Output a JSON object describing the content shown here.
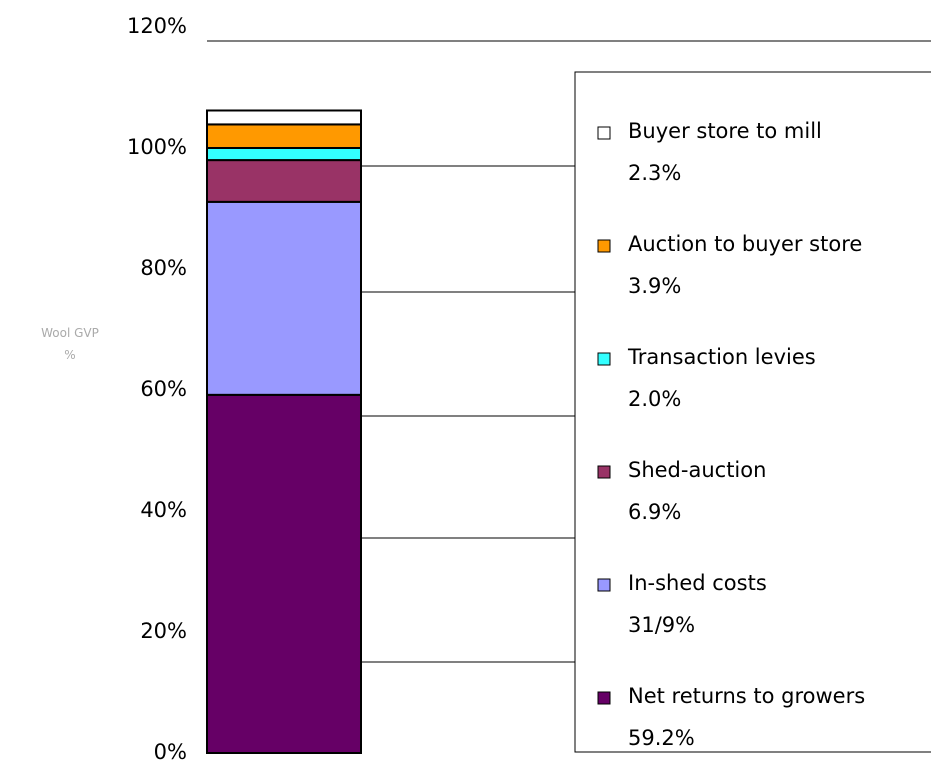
{
  "chart_data": {
    "type": "stacked_bar",
    "y_label": "Wool GVP %",
    "categories": [
      null
    ],
    "series": [
      {
        "name": "Net returns to growers",
        "color": "#660066",
        "values": [
          59.2
        ],
        "value_labels": [
          "59.2%"
        ]
      },
      {
        "name": "In-shed costs",
        "color": "#9999ff",
        "values": [
          31.9
        ],
        "value_labels": [
          "31/9%"
        ]
      },
      {
        "name": "Shed-auction",
        "color": "#993366",
        "values": [
          6.9
        ],
        "value_labels": [
          "6.9%"
        ]
      },
      {
        "name": "Transaction levies",
        "color": "#33ffff",
        "values": [
          2.0
        ],
        "value_labels": [
          "2.0%"
        ]
      },
      {
        "name": "Auction to buyer store",
        "color": "#ff9900",
        "values": [
          3.9
        ],
        "value_labels": [
          "3.9%"
        ]
      },
      {
        "name": "Buyer store to mill",
        "color": "#ffffff",
        "values": [
          2.3
        ],
        "value_labels": [
          "2.3%"
        ]
      }
    ],
    "ylim": [
      0,
      120
    ],
    "yticks": [
      {
        "value": 0,
        "label": "0%"
      },
      {
        "value": 20,
        "label": "20%"
      },
      {
        "value": 40,
        "label": "40%"
      },
      {
        "value": 60,
        "label": "60%"
      },
      {
        "value": 80,
        "label": "80%"
      },
      {
        "value": 100,
        "label": "100%"
      },
      {
        "value": 120,
        "label": "120%"
      }
    ],
    "legend": "right"
  }
}
